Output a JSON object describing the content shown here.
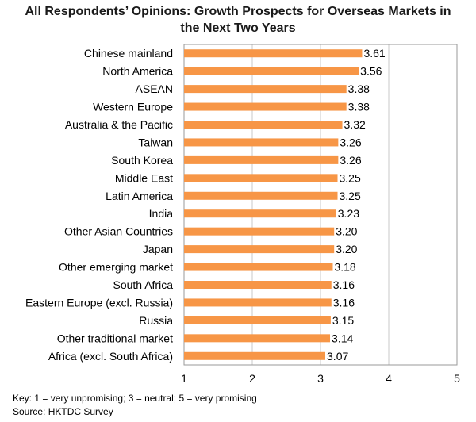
{
  "chart_data": {
    "type": "bar",
    "orientation": "horizontal",
    "title_line1": "All Respondents’ Opinions: Growth Prospects for Overseas Markets in",
    "title_line2": "the Next Two Years",
    "categories": [
      "Chinese mainland",
      "North America",
      "ASEAN",
      "Western Europe",
      "Australia & the Pacific",
      "Taiwan",
      "South Korea",
      "Middle East",
      "Latin America",
      "India",
      "Other Asian Countries",
      "Japan",
      "Other emerging market",
      "South Africa",
      "Eastern Europe (excl. Russia)",
      "Russia",
      "Other traditional market",
      "Africa (excl. South Africa)"
    ],
    "values": [
      3.61,
      3.56,
      3.38,
      3.38,
      3.32,
      3.26,
      3.26,
      3.25,
      3.25,
      3.23,
      3.2,
      3.2,
      3.18,
      3.16,
      3.16,
      3.15,
      3.14,
      3.07
    ],
    "data_labels": [
      "3.61",
      "3.56",
      "3.38",
      "3.38",
      "3.32",
      "3.26",
      "3.26",
      "3.25",
      "3.25",
      "3.23",
      "3.20",
      "3.20",
      "3.18",
      "3.16",
      "3.16",
      "3.15",
      "3.14",
      "3.07"
    ],
    "xlim": [
      1,
      5
    ],
    "xticks": [
      "1",
      "2",
      "3",
      "4",
      "5"
    ],
    "grid": "vertical",
    "legend": "none",
    "bar_color": "#f79646"
  },
  "notes": {
    "key": "Key: 1 = very unpromising; 3 = neutral; 5 = very promising",
    "source": "Source: HKTDC Survey"
  }
}
